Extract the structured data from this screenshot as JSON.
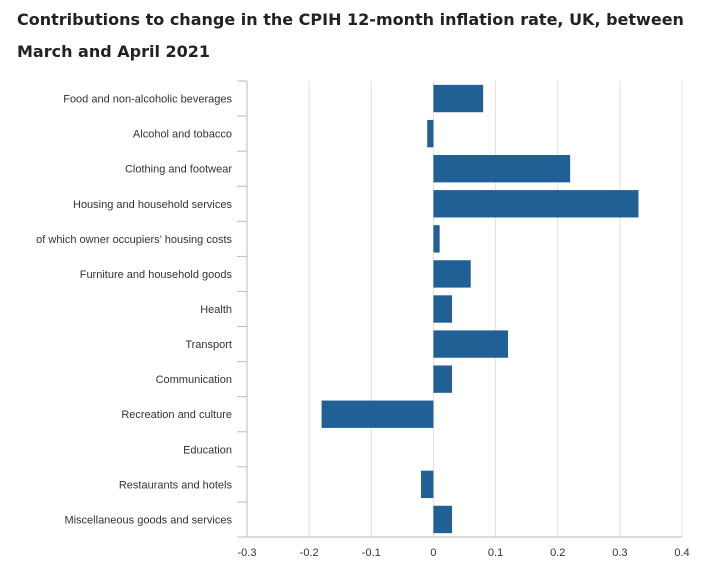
{
  "chart_data": {
    "type": "bar",
    "orientation": "horizontal",
    "title": "Contributions to change in the CPIH 12-month inflation rate, UK, between March and April 2021",
    "categories": [
      "Food and non-alcoholic beverages",
      "Alcohol and tobacco",
      "Clothing and footwear",
      "Housing and household services",
      "of which owner occupiers’ housing costs",
      "Furniture and household goods",
      "Health",
      "Transport",
      "Communication",
      "Recreation and culture",
      "Education",
      "Restaurants and hotels",
      "Miscellaneous goods and services"
    ],
    "values": [
      0.08,
      -0.01,
      0.22,
      0.33,
      0.01,
      0.06,
      0.03,
      0.12,
      0.03,
      -0.18,
      0.0,
      -0.02,
      0.03
    ],
    "xlim": [
      -0.3,
      0.4
    ],
    "xticks": [
      "-0.3",
      "-0.2",
      "-0.1",
      "0",
      "0.1",
      "0.2",
      "0.3",
      "0.4"
    ],
    "xtick_values": [
      -0.3,
      -0.2,
      -0.1,
      0,
      0.1,
      0.2,
      0.3,
      0.4
    ],
    "xlabel": "",
    "ylabel": "",
    "grid": "vertical",
    "bar_color": "#206095",
    "grid_color": "#e0e0e0",
    "axis_color": "#bbbbbb"
  }
}
